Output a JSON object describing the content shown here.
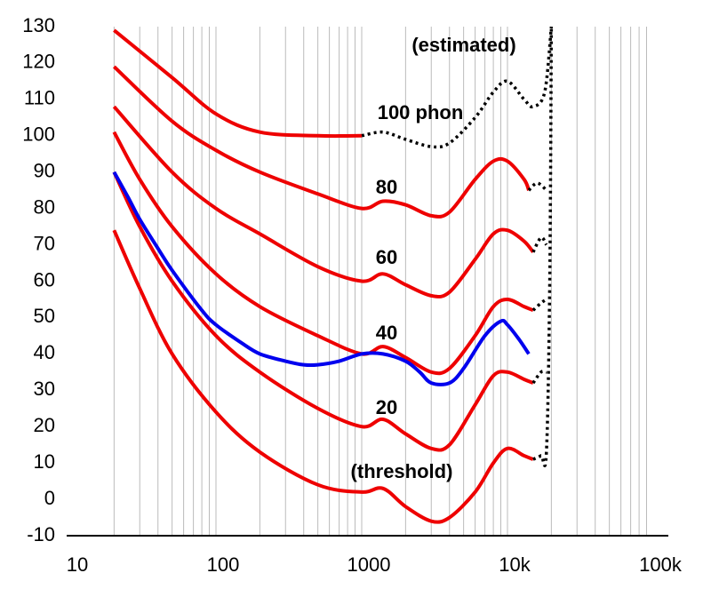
{
  "chart_data": {
    "type": "line",
    "log_x": true,
    "xlim": [
      10,
      100000
    ],
    "ylim": [
      -10,
      130
    ],
    "xticks": [
      10,
      100,
      1000,
      {
        "value": 10000,
        "label": "10k"
      },
      {
        "value": 100000,
        "label": "100k"
      }
    ],
    "yticks": [
      -10,
      0,
      10,
      20,
      30,
      40,
      50,
      60,
      70,
      80,
      90,
      100,
      110,
      120,
      130
    ],
    "xgrid": [
      20,
      30,
      40,
      50,
      60,
      70,
      80,
      90,
      100,
      200,
      300,
      400,
      500,
      600,
      700,
      800,
      900,
      1000,
      2000,
      3000,
      4000,
      5000,
      6000,
      7000,
      8000,
      9000,
      10000,
      20000,
      30000,
      40000,
      50000,
      60000,
      70000,
      80000,
      90000
    ],
    "grid_color": "#bbbbbb",
    "series": [
      {
        "name": "(threshold)",
        "color": "#ee0000",
        "dash": false,
        "x": [
          20,
          30,
          50,
          100,
          200,
          500,
          1000,
          1400,
          2000,
          3000,
          4000,
          6000,
          8000,
          10000,
          13000,
          15000
        ],
        "values": [
          74,
          58,
          40,
          24,
          13,
          4,
          2,
          3,
          -2,
          -6,
          -5,
          2,
          10,
          14,
          12,
          11
        ]
      },
      {
        "name": "20",
        "color": "#ee0000",
        "dash": false,
        "x": [
          20,
          30,
          50,
          100,
          200,
          500,
          1000,
          1400,
          2000,
          3000,
          4000,
          6000,
          8000,
          10000,
          13000,
          15000
        ],
        "values": [
          90,
          75,
          60,
          45,
          35,
          25,
          20,
          22,
          18,
          14,
          15,
          26,
          34,
          35,
          33,
          32
        ]
      },
      {
        "name": "40",
        "color": "#ee0000",
        "dash": false,
        "x": [
          20,
          30,
          50,
          100,
          200,
          500,
          1000,
          1400,
          2000,
          3000,
          4000,
          6000,
          8000,
          10000,
          13000,
          15000
        ],
        "values": [
          101,
          88,
          75,
          62,
          53,
          45,
          40,
          42,
          39,
          35,
          36,
          45,
          53,
          55,
          53,
          52
        ]
      },
      {
        "name": "60",
        "color": "#ee0000",
        "dash": false,
        "x": [
          20,
          50,
          100,
          200,
          500,
          1000,
          1400,
          2000,
          3000,
          4000,
          6000,
          8000,
          10000,
          13000,
          15000
        ],
        "values": [
          108,
          90,
          80,
          73,
          64,
          60,
          62,
          59,
          56,
          57,
          66,
          73,
          74,
          71,
          68
        ]
      },
      {
        "name": "80",
        "color": "#ee0000",
        "dash": false,
        "x": [
          20,
          50,
          100,
          200,
          500,
          1000,
          1400,
          2000,
          3000,
          4000,
          6000,
          8000,
          10000,
          13000,
          14000
        ],
        "values": [
          119,
          104,
          96,
          90,
          84,
          80,
          82,
          81,
          78,
          79,
          88,
          93,
          93,
          88,
          85
        ]
      },
      {
        "name": "100 phon",
        "color": "#ee0000",
        "dash": false,
        "x": [
          20,
          50,
          100,
          200,
          500,
          1000
        ],
        "values": [
          129,
          116,
          106,
          101,
          100,
          100
        ]
      },
      {
        "name": "(estimated)",
        "color": "#000000",
        "dash": true,
        "x": [
          1000,
          1400,
          2000,
          3000,
          4000,
          6000,
          8000,
          10000,
          13000,
          15000,
          18000,
          20000,
          null,
          14000,
          16000,
          18500,
          null,
          15000,
          17000,
          18500,
          null,
          15000,
          17000,
          18500,
          null,
          15000,
          17000,
          18500,
          null,
          15000,
          17000,
          18500,
          19500,
          20000
        ],
        "values": [
          100,
          101,
          99,
          97,
          98,
          105,
          112,
          115,
          110,
          108,
          112,
          130,
          null,
          85,
          87,
          85,
          null,
          68,
          72,
          70,
          null,
          52,
          54,
          55,
          null,
          32,
          35,
          35,
          null,
          11,
          12,
          13,
          60,
          130
        ]
      },
      {
        "color": "#0000ee",
        "dash": false,
        "x": [
          20,
          25,
          30,
          40,
          50,
          80,
          100,
          150,
          200,
          300,
          400,
          500,
          700,
          1000,
          1400,
          2000,
          2500,
          3000,
          4000,
          5000,
          7000,
          9000,
          10000,
          12000,
          14000
        ],
        "values": [
          90,
          83,
          77,
          69,
          63,
          52,
          48,
          43,
          40,
          38,
          37,
          37,
          38,
          40,
          40,
          38,
          35,
          32,
          32,
          36,
          45,
          49,
          48,
          44,
          40
        ]
      }
    ]
  }
}
